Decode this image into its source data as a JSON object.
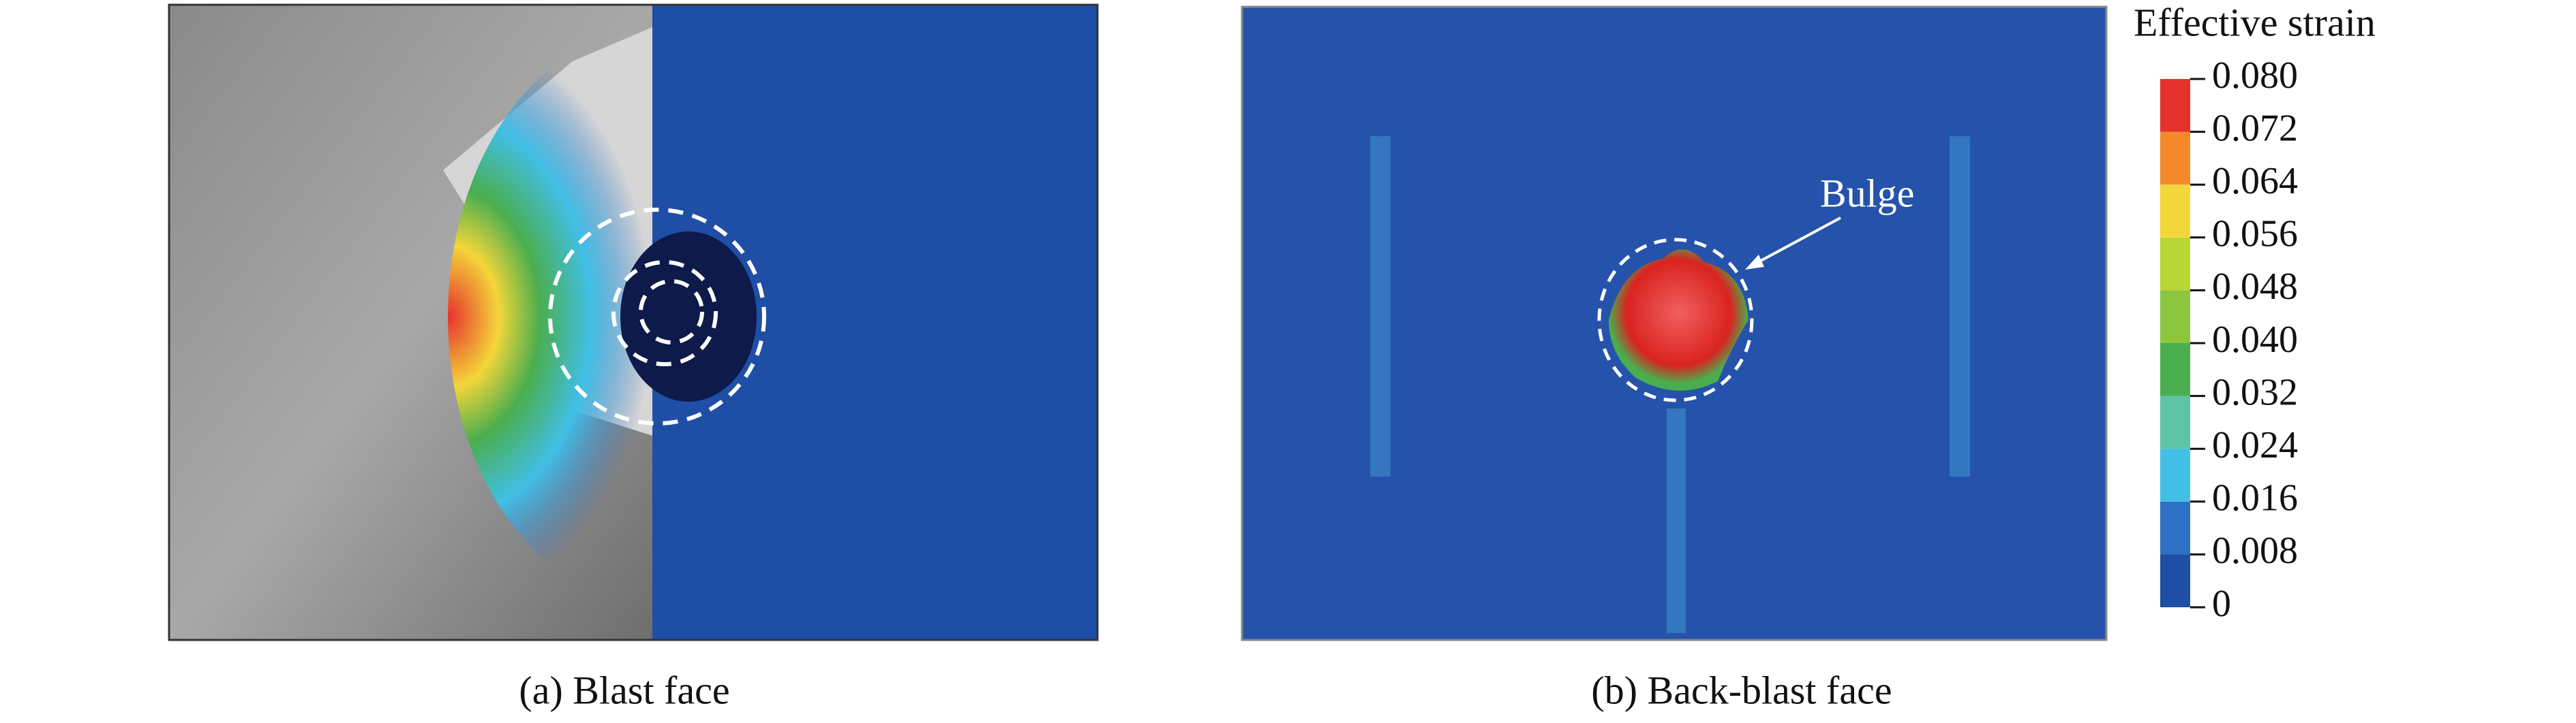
{
  "panels": [
    {
      "caption": "(a) Blast face"
    },
    {
      "caption": "(b) Back-blast face",
      "annotation": "Bulge"
    }
  ],
  "colorbar": {
    "title": "Effective strain",
    "ticks": [
      0,
      0.008,
      0.016,
      0.024,
      0.032,
      {
        "value": 0.04,
        "label": "0.040"
      },
      0.048,
      0.056,
      0.064,
      0.072,
      {
        "value": 0.08,
        "label": "0.080"
      }
    ],
    "colors": [
      "#1f4ea6",
      "#2f6fc4",
      "#41bfe6",
      "#5cc4a4",
      "#4aae4e",
      "#8cc63f",
      "#b9d636",
      "#f3d63a",
      "#f5892a",
      "#e6302c"
    ]
  }
}
